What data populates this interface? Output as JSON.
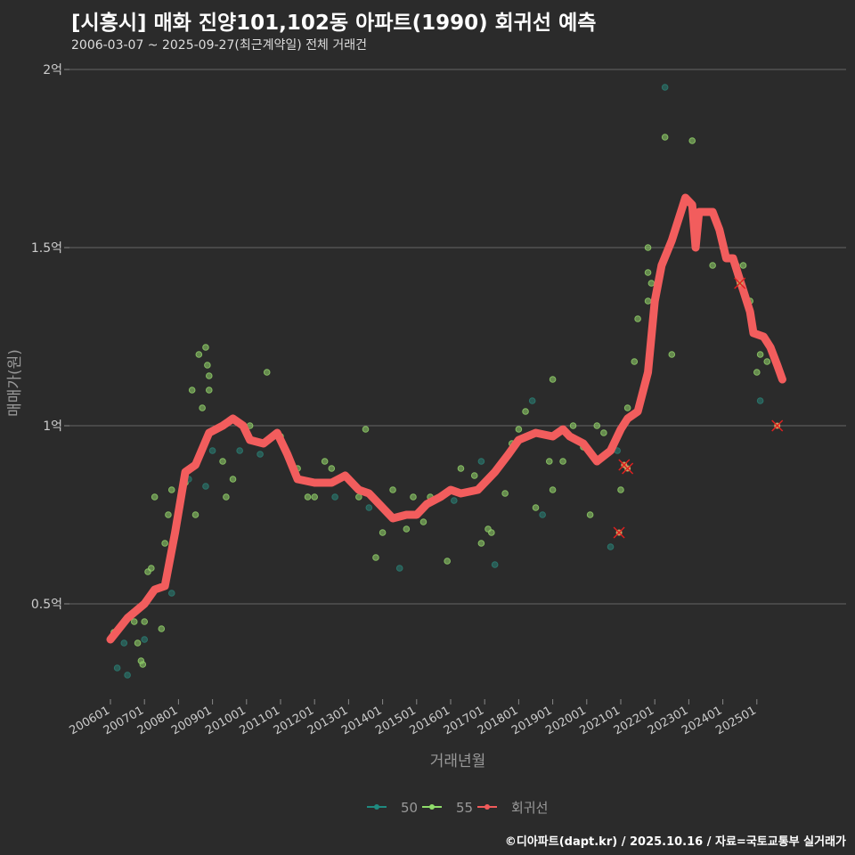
{
  "title": "[시흥시] 매화 진양101,102동 아파트(1990) 회귀선 예측",
  "subtitle": "2006-03-07 ~ 2025-09-27(최근계약일) 전체 거래건",
  "credit": "©디아파트(dapt.kr) / 2025.10.16 / 자료=국토교통부 실거래가",
  "chart_data": {
    "type": "scatter",
    "xlabel": "거래년월",
    "ylabel": "매매가(원)",
    "ylim": [
      0.22,
      2.05
    ],
    "xlim": [
      2005.15,
      2028.0
    ],
    "yticks": [
      {
        "v": 0.5,
        "label": "0.5억"
      },
      {
        "v": 1,
        "label": "1억"
      },
      {
        "v": 1.5,
        "label": "1.5억"
      },
      {
        "v": 2,
        "label": "2억"
      }
    ],
    "xticks": [
      "200601",
      "200701",
      "200801",
      "200901",
      "201001",
      "201101",
      "201201",
      "201301",
      "201401",
      "201501",
      "201601",
      "201701",
      "201801",
      "201901",
      "202001",
      "202101",
      "202201",
      "202301",
      "202401",
      "202501"
    ],
    "legend": [
      {
        "name": "50",
        "color": "#1f8a80"
      },
      {
        "name": "55",
        "color": "#8fdc6a"
      },
      {
        "name": "회귀선",
        "color": "#f05a5a"
      }
    ],
    "colors": {
      "s50": "#2a7a70",
      "s55": "#8cc866",
      "line": "#f25d5d",
      "outlier": "#e02020"
    },
    "points": [
      [
        2006.1,
        0.42,
        "55"
      ],
      [
        2006.2,
        0.32,
        "50"
      ],
      [
        2006.4,
        0.39,
        "50"
      ],
      [
        2006.5,
        0.3,
        "50"
      ],
      [
        2006.7,
        0.45,
        "55"
      ],
      [
        2006.8,
        0.39,
        "55"
      ],
      [
        2006.9,
        0.34,
        "55"
      ],
      [
        2006.95,
        0.33,
        "55"
      ],
      [
        2007.0,
        0.45,
        "55"
      ],
      [
        2007.0,
        0.4,
        "50"
      ],
      [
        2007.1,
        0.59,
        "55"
      ],
      [
        2007.2,
        0.6,
        "55"
      ],
      [
        2007.3,
        0.8,
        "55"
      ],
      [
        2007.5,
        0.43,
        "55"
      ],
      [
        2007.6,
        0.67,
        "55"
      ],
      [
        2007.7,
        0.75,
        "55"
      ],
      [
        2007.8,
        0.82,
        "55"
      ],
      [
        2007.8,
        0.53,
        "50"
      ],
      [
        2008.2,
        0.84,
        "55"
      ],
      [
        2008.3,
        0.85,
        "50"
      ],
      [
        2008.4,
        1.1,
        "55"
      ],
      [
        2008.5,
        0.75,
        "55"
      ],
      [
        2008.6,
        1.2,
        "55"
      ],
      [
        2008.7,
        1.05,
        "55"
      ],
      [
        2008.8,
        1.22,
        "55"
      ],
      [
        2008.85,
        1.17,
        "55"
      ],
      [
        2008.9,
        1.14,
        "55"
      ],
      [
        2008.9,
        1.1,
        "55"
      ],
      [
        2009.0,
        0.93,
        "50"
      ],
      [
        2008.8,
        0.83,
        "50"
      ],
      [
        2009.4,
        0.8,
        "55"
      ],
      [
        2009.3,
        0.9,
        "55"
      ],
      [
        2009.6,
        0.85,
        "55"
      ],
      [
        2009.8,
        0.93,
        "50"
      ],
      [
        2010.1,
        1.0,
        "55"
      ],
      [
        2010.4,
        0.92,
        "50"
      ],
      [
        2010.6,
        1.15,
        "55"
      ],
      [
        2011.0,
        0.97,
        "55"
      ],
      [
        2011.5,
        0.88,
        "55"
      ],
      [
        2011.8,
        0.8,
        "55"
      ],
      [
        2012.0,
        0.8,
        "55"
      ],
      [
        2012.3,
        0.9,
        "55"
      ],
      [
        2012.5,
        0.88,
        "55"
      ],
      [
        2012.6,
        0.8,
        "50"
      ],
      [
        2013.0,
        0.85,
        "55"
      ],
      [
        2013.3,
        0.8,
        "55"
      ],
      [
        2013.5,
        0.99,
        "55"
      ],
      [
        2013.6,
        0.77,
        "50"
      ],
      [
        2013.8,
        0.63,
        "55"
      ],
      [
        2014.0,
        0.7,
        "55"
      ],
      [
        2014.3,
        0.82,
        "55"
      ],
      [
        2014.5,
        0.6,
        "50"
      ],
      [
        2014.7,
        0.71,
        "55"
      ],
      [
        2014.9,
        0.8,
        "55"
      ],
      [
        2015.2,
        0.73,
        "55"
      ],
      [
        2015.4,
        0.8,
        "55"
      ],
      [
        2015.9,
        0.62,
        "55"
      ],
      [
        2016.1,
        0.79,
        "50"
      ],
      [
        2016.3,
        0.88,
        "55"
      ],
      [
        2016.7,
        0.86,
        "55"
      ],
      [
        2016.9,
        0.9,
        "50"
      ],
      [
        2016.9,
        0.67,
        "55"
      ],
      [
        2017.1,
        0.71,
        "55"
      ],
      [
        2017.2,
        0.7,
        "55"
      ],
      [
        2017.3,
        0.61,
        "50"
      ],
      [
        2017.6,
        0.81,
        "55"
      ],
      [
        2017.8,
        0.95,
        "55"
      ],
      [
        2018.0,
        0.99,
        "55"
      ],
      [
        2018.2,
        1.04,
        "55"
      ],
      [
        2018.4,
        1.07,
        "50"
      ],
      [
        2018.5,
        0.77,
        "55"
      ],
      [
        2018.7,
        0.75,
        "50"
      ],
      [
        2018.9,
        0.9,
        "55"
      ],
      [
        2019.0,
        1.13,
        "55"
      ],
      [
        2019.0,
        0.82,
        "55"
      ],
      [
        2019.3,
        0.9,
        "55"
      ],
      [
        2019.6,
        1.0,
        "55"
      ],
      [
        2019.9,
        0.94,
        "55"
      ],
      [
        2020.1,
        0.75,
        "55"
      ],
      [
        2020.3,
        1.0,
        "55"
      ],
      [
        2020.5,
        0.98,
        "55"
      ],
      [
        2020.7,
        0.66,
        "50"
      ],
      [
        2020.9,
        0.93,
        "50"
      ],
      [
        2021.0,
        0.82,
        "55"
      ],
      [
        2021.2,
        1.05,
        "55"
      ],
      [
        2021.4,
        1.18,
        "55"
      ],
      [
        2021.5,
        1.3,
        "55"
      ],
      [
        2021.8,
        1.35,
        "55"
      ],
      [
        2021.8,
        1.43,
        "55"
      ],
      [
        2021.8,
        1.5,
        "55"
      ],
      [
        2021.9,
        1.4,
        "55"
      ],
      [
        2022.3,
        1.95,
        "50"
      ],
      [
        2022.3,
        1.81,
        "55"
      ],
      [
        2022.5,
        1.2,
        "55"
      ],
      [
        2023.1,
        1.8,
        "55"
      ],
      [
        2023.7,
        1.45,
        "55"
      ],
      [
        2024.0,
        1.5,
        "55"
      ],
      [
        2024.4,
        1.45,
        "55"
      ],
      [
        2024.6,
        1.45,
        "55"
      ],
      [
        2024.8,
        1.35,
        "55"
      ],
      [
        2025.0,
        1.15,
        "55"
      ],
      [
        2025.1,
        1.2,
        "55"
      ],
      [
        2025.3,
        1.18,
        "55"
      ],
      [
        2025.1,
        1.07,
        "50"
      ]
    ],
    "outliers": [
      [
        2020.95,
        0.7
      ],
      [
        2021.1,
        0.89
      ],
      [
        2021.2,
        0.88
      ],
      [
        2024.5,
        1.4
      ],
      [
        2025.6,
        1.0
      ]
    ],
    "regression": [
      [
        2006.0,
        0.4
      ],
      [
        2006.5,
        0.46
      ],
      [
        2007.0,
        0.5
      ],
      [
        2007.3,
        0.54
      ],
      [
        2007.6,
        0.55
      ],
      [
        2007.9,
        0.7
      ],
      [
        2008.2,
        0.87
      ],
      [
        2008.5,
        0.89
      ],
      [
        2008.9,
        0.98
      ],
      [
        2009.3,
        1.0
      ],
      [
        2009.6,
        1.02
      ],
      [
        2009.9,
        1.0
      ],
      [
        2010.1,
        0.96
      ],
      [
        2010.5,
        0.95
      ],
      [
        2010.9,
        0.98
      ],
      [
        2011.2,
        0.92
      ],
      [
        2011.5,
        0.85
      ],
      [
        2012.0,
        0.84
      ],
      [
        2012.5,
        0.84
      ],
      [
        2012.9,
        0.86
      ],
      [
        2013.3,
        0.82
      ],
      [
        2013.6,
        0.81
      ],
      [
        2014.0,
        0.77
      ],
      [
        2014.3,
        0.74
      ],
      [
        2014.7,
        0.75
      ],
      [
        2015.0,
        0.75
      ],
      [
        2015.3,
        0.78
      ],
      [
        2015.7,
        0.8
      ],
      [
        2016.0,
        0.82
      ],
      [
        2016.3,
        0.81
      ],
      [
        2016.8,
        0.82
      ],
      [
        2017.3,
        0.87
      ],
      [
        2017.7,
        0.92
      ],
      [
        2018.0,
        0.96
      ],
      [
        2018.5,
        0.98
      ],
      [
        2019.0,
        0.97
      ],
      [
        2019.3,
        0.99
      ],
      [
        2019.5,
        0.97
      ],
      [
        2019.9,
        0.95
      ],
      [
        2020.3,
        0.9
      ],
      [
        2020.7,
        0.93
      ],
      [
        2021.0,
        0.99
      ],
      [
        2021.2,
        1.02
      ],
      [
        2021.5,
        1.04
      ],
      [
        2021.8,
        1.15
      ],
      [
        2022.0,
        1.35
      ],
      [
        2022.2,
        1.45
      ],
      [
        2022.5,
        1.52
      ],
      [
        2022.7,
        1.58
      ],
      [
        2022.9,
        1.64
      ],
      [
        2023.1,
        1.62
      ],
      [
        2023.2,
        1.5
      ],
      [
        2023.3,
        1.6
      ],
      [
        2023.7,
        1.6
      ],
      [
        2023.9,
        1.55
      ],
      [
        2024.1,
        1.47
      ],
      [
        2024.3,
        1.47
      ],
      [
        2024.6,
        1.38
      ],
      [
        2024.8,
        1.32
      ],
      [
        2024.9,
        1.26
      ],
      [
        2025.2,
        1.25
      ],
      [
        2025.4,
        1.22
      ],
      [
        2025.6,
        1.17
      ],
      [
        2025.75,
        1.13
      ]
    ]
  }
}
